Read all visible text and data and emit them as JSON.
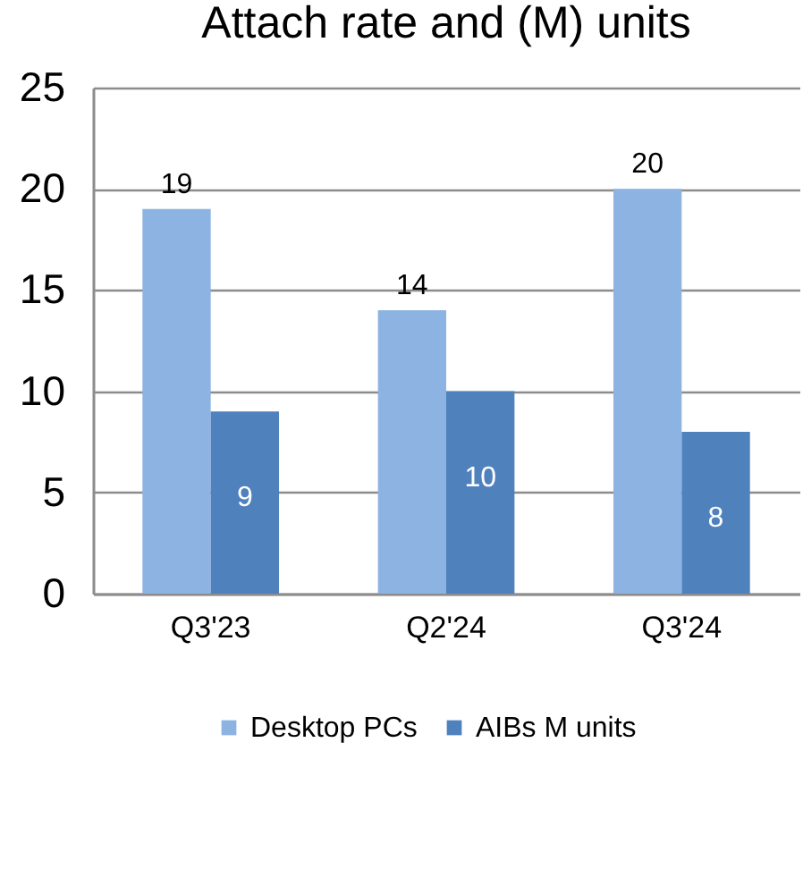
{
  "chart_data": {
    "type": "bar",
    "title": "Attach rate and (M) units",
    "categories": [
      "Q3'23",
      "Q2'24",
      "Q3'24"
    ],
    "series": [
      {
        "name": "Desktop PCs",
        "color": "#8db3e2",
        "values": [
          19,
          14,
          20
        ]
      },
      {
        "name": "AIBs M units",
        "color": "#4f81bd",
        "values": [
          9,
          10,
          8
        ]
      }
    ],
    "ylim": [
      0,
      25
    ],
    "yticks": [
      0,
      5,
      10,
      15,
      20,
      25
    ],
    "grid": "y",
    "legend": "bottom",
    "data_labels": true
  }
}
